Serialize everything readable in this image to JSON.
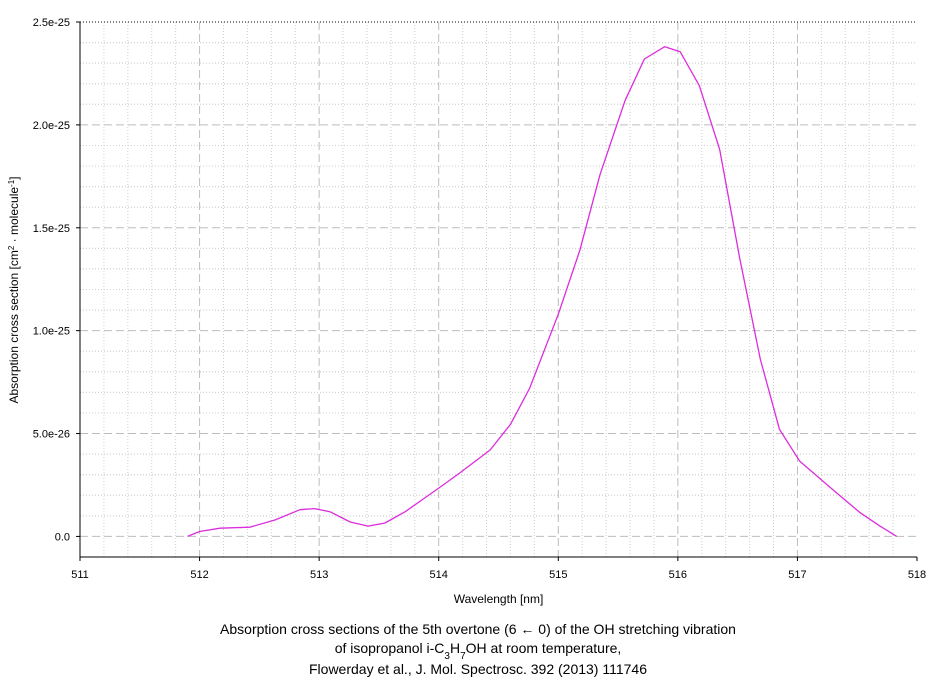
{
  "chart_data": {
    "type": "line",
    "x_label": "Wavelength [nm]",
    "y_label": [
      "Absorption cross section [cm",
      "2",
      " · molecule",
      "-1",
      "]"
    ],
    "caption_line1": "Absorption cross sections of the 5th overtone (6 ← 0) of the OH stretching vibration",
    "caption_line2": [
      "of isopropanol i-C",
      "3",
      "H",
      "7",
      "OH at room temperature,"
    ],
    "caption_line3": "Flowerday et al., J. Mol. Spectrosc. 392 (2013) 111746",
    "x": [
      511.9,
      512.0,
      512.17,
      512.42,
      512.63,
      512.84,
      512.96,
      513.09,
      513.26,
      513.41,
      513.55,
      513.72,
      514.0,
      514.18,
      514.43,
      514.6,
      514.76,
      515.0,
      515.18,
      515.35,
      515.56,
      515.72,
      515.89,
      516.02,
      516.18,
      516.35,
      516.52,
      516.69,
      516.85,
      517.02,
      517.27,
      517.52,
      517.69,
      517.83
    ],
    "values": [
      0,
      2.4e-27,
      4e-27,
      4.5e-27,
      8e-27,
      1.3e-26,
      1.35e-26,
      1.2e-26,
      7e-27,
      5e-27,
      6.5e-27,
      1.2e-26,
      2.35e-26,
      3.1e-26,
      4.2e-26,
      5.45e-26,
      7.2e-26,
      1.08e-25,
      1.39e-25,
      1.76e-25,
      2.12e-25,
      2.32e-25,
      2.38e-25,
      2.355e-25,
      2.19e-25,
      1.88e-25,
      1.345e-25,
      8.6e-26,
      5.2e-26,
      3.65e-26,
      2.4e-26,
      1.17e-26,
      5e-27,
      0
    ],
    "color": "#dc2ddc",
    "xlim": [
      511,
      518
    ],
    "xticks": [
      511,
      512,
      513,
      514,
      515,
      516,
      517,
      518
    ],
    "ylim": [
      -1e-26,
      2.5e-25
    ],
    "yticks": [
      {
        "value": 0,
        "label": "0.0"
      },
      {
        "value": 5e-26,
        "label": "5.0e-26"
      },
      {
        "value": 1e-25,
        "label": "1.0e-25"
      },
      {
        "value": 1.5e-25,
        "label": "1.5e-25"
      },
      {
        "value": 2e-25,
        "label": "2.0e-25"
      },
      {
        "value": 2.5e-25,
        "label": "2.5e-25"
      }
    ],
    "grid": true
  }
}
